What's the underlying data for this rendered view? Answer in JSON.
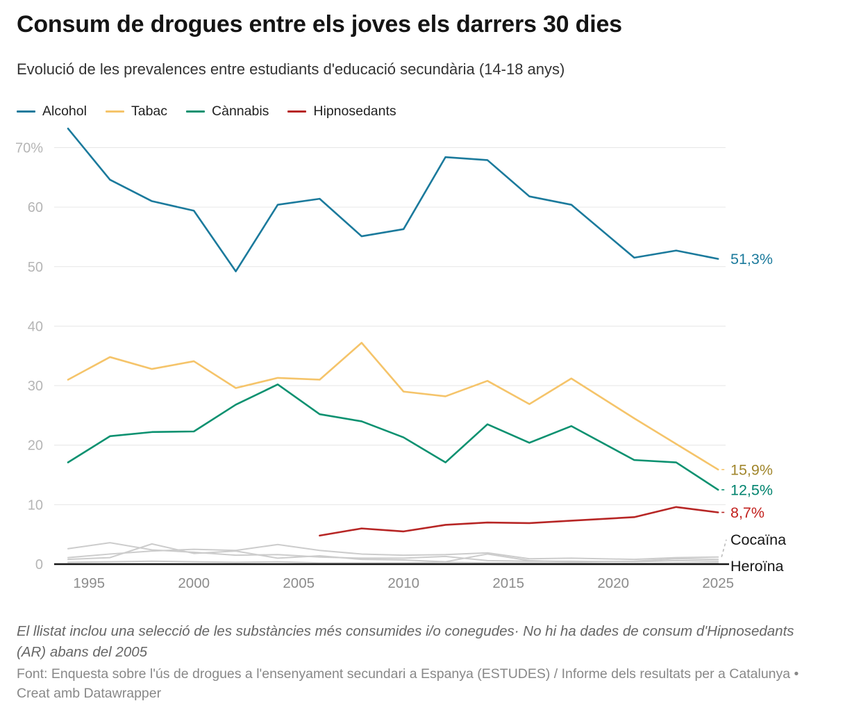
{
  "header": {
    "title": "Consum de drogues entre els joves els darrers 30 dies",
    "subtitle": "Evolució de les prevalences entre estudiants d'educació secundària (14-18 anys)"
  },
  "legend": [
    {
      "label": "Alcohol",
      "color": "#1b7a9c"
    },
    {
      "label": "Tabac",
      "color": "#f5c46a"
    },
    {
      "label": "Cànnabis",
      "color": "#0b9170"
    },
    {
      "label": "Hipnosedants",
      "color": "#b72625"
    }
  ],
  "chart_data": {
    "type": "line",
    "x": [
      1994,
      1996,
      1998,
      2000,
      2002,
      2004,
      2006,
      2008,
      2010,
      2012,
      2014,
      2016,
      2018,
      2021,
      2023,
      2025
    ],
    "series": [
      {
        "id": "alcohol",
        "name": "Alcohol",
        "color": "#1b7a9c",
        "width": 2.6,
        "end_label": "51,3%",
        "end_label_color": "#1b7a9c",
        "connector": false,
        "values": [
          73.2,
          64.6,
          61.0,
          59.4,
          49.2,
          60.4,
          61.4,
          55.1,
          56.3,
          68.4,
          67.9,
          61.8,
          60.4,
          51.5,
          52.7,
          51.3
        ]
      },
      {
        "id": "tabac",
        "name": "Tabac",
        "color": "#f5c46a",
        "width": 2.6,
        "end_label": "15,9%",
        "end_label_color": "#a1862c",
        "connector": true,
        "values": [
          31.0,
          34.8,
          32.8,
          34.1,
          29.6,
          31.3,
          31.0,
          37.2,
          29.0,
          28.2,
          30.8,
          26.9,
          31.2,
          24.5,
          20.2,
          15.9
        ]
      },
      {
        "id": "cannabis",
        "name": "Cànnabis",
        "color": "#0b9170",
        "width": 2.6,
        "end_label": "12,5%",
        "end_label_color": "#00836e",
        "connector": true,
        "values": [
          17.1,
          21.5,
          22.2,
          22.3,
          26.8,
          30.2,
          25.2,
          24.0,
          21.3,
          17.1,
          23.5,
          20.4,
          23.2,
          17.5,
          17.1,
          12.5
        ]
      },
      {
        "id": "hipnosedants",
        "name": "Hipnosedants",
        "color": "#b72625",
        "width": 2.6,
        "end_label": "8,7%",
        "end_label_color": "#c2201d",
        "connector": true,
        "values": [
          null,
          null,
          null,
          null,
          null,
          null,
          4.8,
          6.0,
          5.5,
          6.6,
          7.0,
          6.9,
          7.3,
          7.9,
          9.6,
          8.7
        ]
      },
      {
        "id": "cocaina",
        "name": "Cocaïna",
        "color": "#cccccc",
        "width": 2,
        "end_label": "Cocaïna",
        "end_label_color": "#161616",
        "connector": true,
        "connector_color": "#bbbbbb",
        "label_dy": -25,
        "values": [
          1.1,
          1.7,
          2.2,
          2.5,
          2.3,
          3.3,
          2.3,
          1.7,
          1.5,
          1.6,
          1.9,
          0.9,
          1.0,
          0.8,
          1.1,
          1.2
        ]
      },
      {
        "id": "gray-1",
        "name": "",
        "color": "#cccccc",
        "width": 2,
        "values": [
          2.6,
          3.6,
          2.4,
          2.0,
          1.5,
          1.6,
          1.2,
          1.0,
          1.0,
          1.3,
          0.6,
          0.5,
          0.5,
          0.4,
          0.6,
          0.5
        ]
      },
      {
        "id": "gray-2",
        "name": "",
        "color": "#cccccc",
        "width": 2,
        "values": [
          0.8,
          1.1,
          3.4,
          1.8,
          2.2,
          1.0,
          1.4,
          0.8,
          0.7,
          0.4,
          1.7,
          0.6,
          0.4,
          0.5,
          0.9,
          0.8
        ]
      },
      {
        "id": "heroina",
        "name": "Heroïna",
        "color": "#cccccc",
        "width": 2,
        "end_label": "Heroïna",
        "end_label_color": "#161616",
        "connector": false,
        "label_dy": 4,
        "values": [
          0.3,
          0.4,
          0.5,
          0.4,
          0.3,
          0.4,
          0.2,
          0.2,
          0.2,
          0.3,
          0.2,
          0.2,
          0.2,
          0.1,
          0.2,
          0.2
        ]
      }
    ],
    "yticks": [
      0,
      10,
      20,
      30,
      40,
      50,
      60,
      70
    ],
    "ytick_labels": [
      "0",
      "10",
      "20",
      "30",
      "40",
      "50",
      "60",
      "70%"
    ],
    "xticks": [
      1995,
      2000,
      2005,
      2010,
      2015,
      2020,
      2025
    ],
    "ylim": [
      0,
      73.5
    ],
    "xlim": [
      1993.3,
      2025.5
    ],
    "grid": "horizontal-only",
    "legend_position": "top-left",
    "title": "Consum de drogues entre els joves els darrers 30 dies",
    "ylabel": "",
    "xlabel": ""
  },
  "footer": {
    "note": "El llistat inclou una selecció de les substàncies més consumides i/o conegudes· No hi ha dades de consum d'Hipnosedants (AR) abans del 2005",
    "source": "Font: Enquesta sobre l'ús de drogues a l'ensenyament secundari a Espanya (ESTUDES) / Informe dels resultats per a Catalunya • Creat amb Datawrapper"
  }
}
